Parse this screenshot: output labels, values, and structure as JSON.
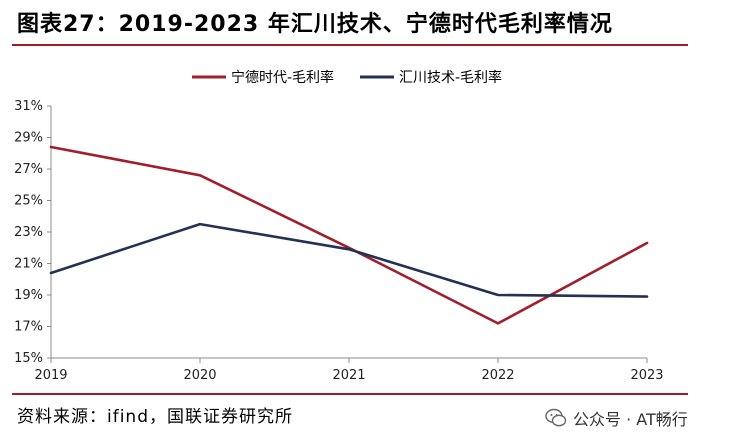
{
  "header": {
    "title": "图表27：2019-2023 年汇川技术、宁德时代毛利率情况"
  },
  "footer": {
    "source": "资料来源：ifind，国联证券研究所"
  },
  "watermark": {
    "text": "公众号 · AT畅行"
  },
  "chart_data": {
    "type": "line",
    "title": "图表27：2019-2023 年汇川技术、宁德时代毛利率情况",
    "xlabel": "",
    "ylabel": "",
    "categories": [
      "2019",
      "2020",
      "2021",
      "2022",
      "2023"
    ],
    "ylim": [
      15,
      31
    ],
    "yticks": [
      15,
      17,
      19,
      21,
      23,
      25,
      27,
      29,
      31
    ],
    "ytick_labels": [
      "15%",
      "17%",
      "19%",
      "21%",
      "23%",
      "25%",
      "27%",
      "29%",
      "31%"
    ],
    "legend_position": "top-center",
    "grid": false,
    "series": [
      {
        "name": "宁德时代-毛利率",
        "color": "#a31e2c",
        "values": [
          28.4,
          26.6,
          22.0,
          17.2,
          22.3
        ]
      },
      {
        "name": "汇川技术-毛利率",
        "color": "#233253",
        "values": [
          20.4,
          23.5,
          21.9,
          19.0,
          18.9
        ]
      }
    ]
  }
}
